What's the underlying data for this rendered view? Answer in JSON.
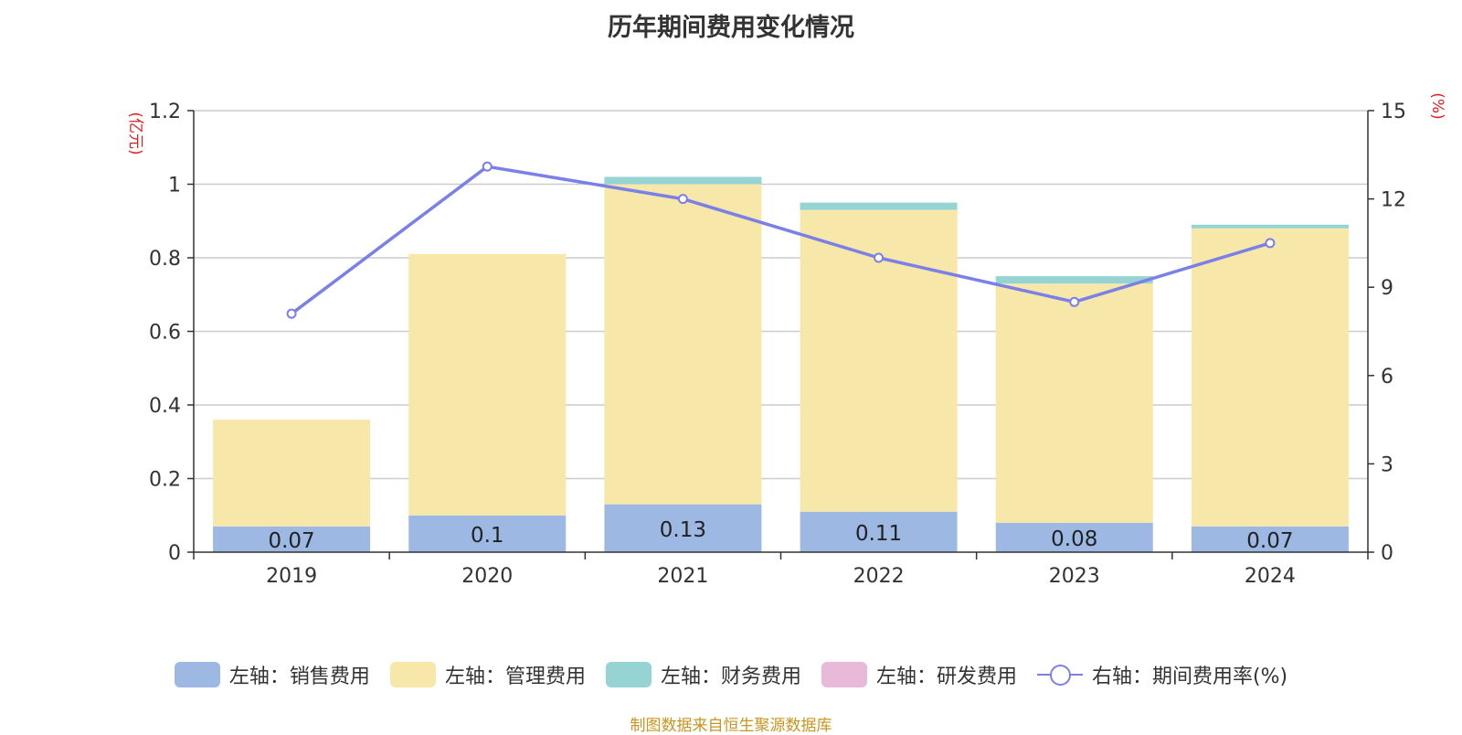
{
  "chart_data": {
    "type": "bar",
    "stacked": true,
    "title": "历年期间费用变化情况",
    "categories": [
      "2019",
      "2020",
      "2021",
      "2022",
      "2023",
      "2024"
    ],
    "left_axis": {
      "unit_label": "(亿元)",
      "ylim": [
        0,
        1.2
      ],
      "ticks": [
        "0",
        "0.2",
        "0.4",
        "0.6",
        "0.8",
        "1",
        "1.2"
      ]
    },
    "right_axis": {
      "unit_label": "(%)",
      "ylim": [
        0,
        15
      ],
      "ticks": [
        "0",
        "3",
        "6",
        "9",
        "12",
        "15"
      ]
    },
    "series": [
      {
        "name": "左轴：销售费用",
        "type": "bar",
        "axis": "left",
        "color": "#9db8e2",
        "values": [
          0.07,
          0.1,
          0.13,
          0.11,
          0.08,
          0.07
        ],
        "labels": [
          "0.07",
          "0.1",
          "0.13",
          "0.11",
          "0.08",
          "0.07"
        ]
      },
      {
        "name": "左轴：管理费用",
        "type": "bar",
        "axis": "left",
        "color": "#f7e7a8",
        "values": [
          0.29,
          0.71,
          0.87,
          0.82,
          0.65,
          0.81
        ]
      },
      {
        "name": "左轴：财务费用",
        "type": "bar",
        "axis": "left",
        "color": "#96d3d3",
        "values": [
          0.0,
          0.0,
          0.02,
          0.02,
          0.02,
          0.01
        ]
      },
      {
        "name": "左轴：研发费用",
        "type": "bar",
        "axis": "left",
        "color": "#e8b9d9",
        "values": [
          0,
          0,
          0,
          0,
          0,
          0
        ]
      },
      {
        "name": "右轴：期间费用率(%)",
        "type": "line",
        "axis": "right",
        "color": "#7b7fe8",
        "values": [
          8.1,
          13.1,
          12.0,
          10.0,
          8.5,
          10.5
        ]
      }
    ],
    "grid": true,
    "legend_position": "bottom"
  },
  "source_note": "制图数据来自恒生聚源数据库"
}
